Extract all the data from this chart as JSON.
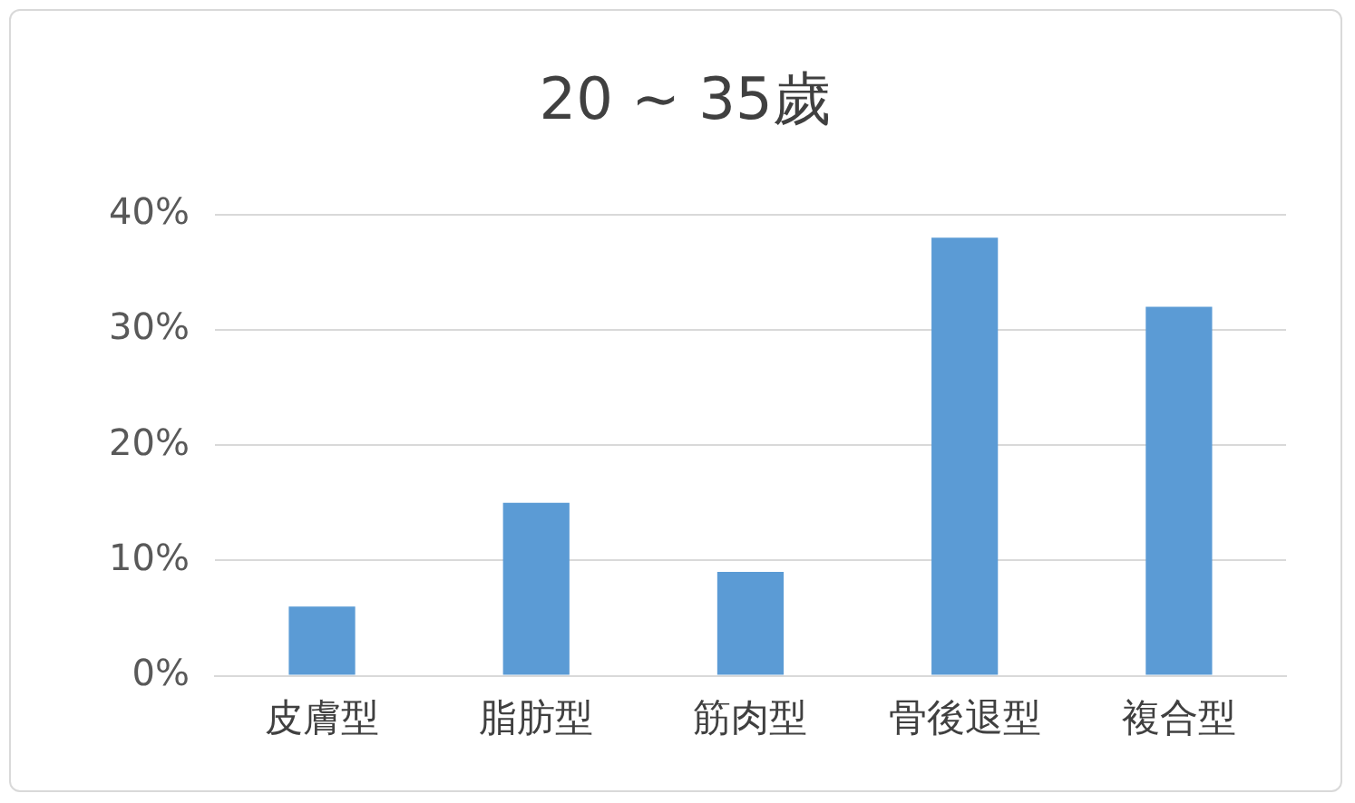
{
  "chart_data": {
    "type": "bar",
    "title": "20 ~ 35歲",
    "categories": [
      "皮膚型",
      "脂肪型",
      "筋肉型",
      "骨後退型",
      "複合型"
    ],
    "values": [
      6,
      15,
      9,
      38,
      32
    ],
    "color": "#5b9bd5",
    "ylim": [
      0,
      40
    ],
    "yticks": [
      {
        "value": 0,
        "label": "0%"
      },
      {
        "value": 10,
        "label": "10%"
      },
      {
        "value": 20,
        "label": "20%"
      },
      {
        "value": 30,
        "label": "30%"
      },
      {
        "value": 40,
        "label": "40%"
      }
    ],
    "grid": "y",
    "legend": false
  }
}
